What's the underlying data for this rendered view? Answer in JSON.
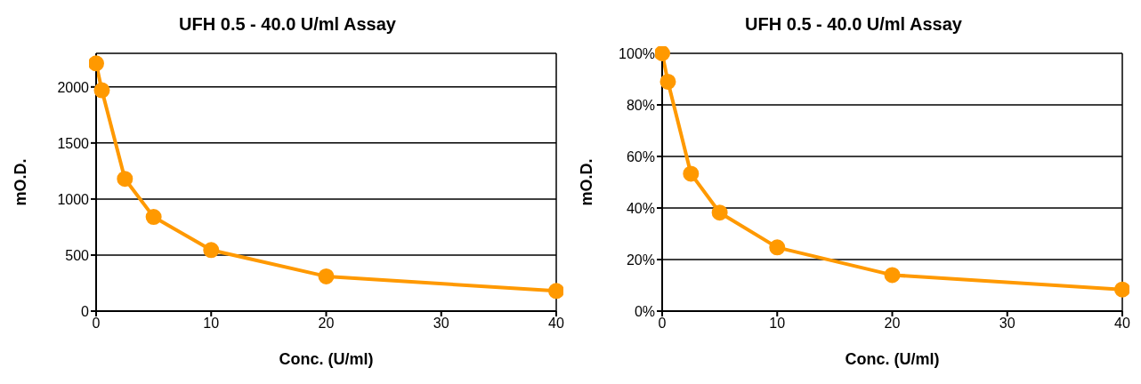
{
  "chart_data": [
    {
      "type": "line",
      "title": "UFH 0.5 - 40.0 U/ml Assay",
      "xlabel": "Conc. (U/ml)",
      "ylabel": "mO.D.",
      "x": [
        0,
        0.5,
        2.5,
        5,
        10,
        20,
        40
      ],
      "series": [
        {
          "color": "#ff9900",
          "values": [
            2210,
            1970,
            1180,
            840,
            545,
            310,
            180
          ]
        }
      ],
      "xlim": [
        0,
        40
      ],
      "xticks": [
        0,
        10,
        20,
        30,
        40
      ],
      "ylim": [
        0,
        2300
      ],
      "yticks": [
        0,
        500,
        1000,
        1500,
        2000
      ],
      "grid": "y",
      "marker": "circle",
      "line_style": "solid"
    },
    {
      "type": "line",
      "title": "UFH 0.5 - 40.0 U/ml Assay",
      "xlabel": "Conc. (U/ml)",
      "ylabel": "mO.D.",
      "x": [
        0,
        0.5,
        2.5,
        5,
        10,
        20,
        40
      ],
      "series": [
        {
          "color": "#ff9900",
          "values": [
            100,
            89,
            53.3,
            38.2,
            24.7,
            14.0,
            8.4
          ]
        }
      ],
      "xlim": [
        0,
        40
      ],
      "xticks": [
        0,
        10,
        20,
        30,
        40
      ],
      "ylim": [
        0,
        100
      ],
      "yticks": [
        {
          "value": 0,
          "label": "0%"
        },
        {
          "value": 20,
          "label": "20%"
        },
        {
          "value": 40,
          "label": "40%"
        },
        {
          "value": 60,
          "label": "60%"
        },
        {
          "value": 80,
          "label": "80%"
        },
        {
          "value": 100,
          "label": "100%"
        }
      ],
      "grid": "y",
      "marker": "circle",
      "line_style": "solid"
    }
  ]
}
